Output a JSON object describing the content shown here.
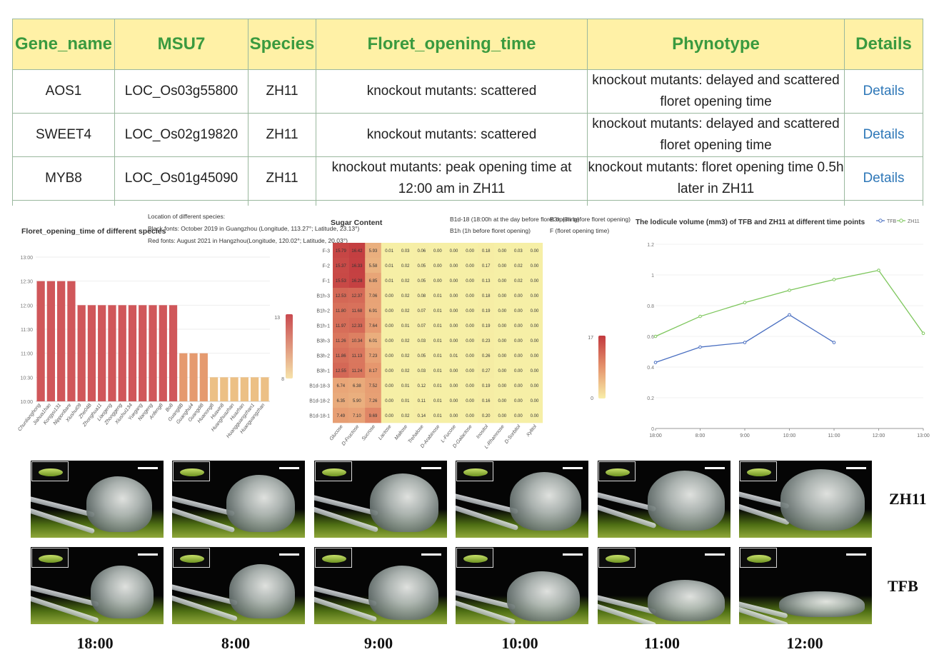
{
  "table": {
    "headers": [
      "Gene_name",
      "MSU7",
      "Species",
      "Floret_opening_time",
      "Phynotype",
      "Details"
    ],
    "rows": [
      {
        "gene": "AOS1",
        "msu": "LOC_Os03g55800",
        "species": "ZH11",
        "opening": "knockout mutants: scattered",
        "phenotype": "knockout mutants: delayed and scattered floret opening time",
        "details": "Details"
      },
      {
        "gene": "SWEET4",
        "msu": "LOC_Os02g19820",
        "species": "ZH11",
        "opening": "knockout mutants: scattered",
        "phenotype": "knockout mutants: delayed and scattered floret opening time",
        "details": "Details"
      },
      {
        "gene": "MYB8",
        "msu": "LOC_Os01g45090",
        "species": "ZH11",
        "opening": "knockout mutants: peak opening time at 12:00 am in ZH11",
        "phenotype": "knockout mutants: floret opening time 0.5h later in ZH11",
        "details": "Details"
      }
    ]
  },
  "colors": {
    "header_bg": "#fff1a6",
    "header_text": "#3a9a3f",
    "link": "#2f78b8",
    "bar_high": "#d0575a",
    "bar_mid": "#e59a6f",
    "bar_low": "#ecc085",
    "tfb_line": "#4a6fc1",
    "zh11_line": "#7dc65c"
  },
  "chart_data": [
    {
      "type": "bar",
      "title": "Floret_opening_time of different species",
      "notes": [
        "Location of different species:",
        "Black fonts: October 2019 in Guangzhou (Longitude, 113.27°; Latitude, 23.13°)",
        "Red fonts: August 2021 in Hangzhou(Longitude, 120.02°; Latitude, 20.03°)"
      ],
      "categories": [
        "Chunlianghong",
        "Jiahua1hao",
        "Kongyu131",
        "Nipponbare",
        "Xiushui09",
        "Zhe04B",
        "Zhonghua11",
        "Liaogeng",
        "Zhonggeng",
        "Xiushui134",
        "Yuegang",
        "Nangeng",
        "Anfeng8",
        "Bo8",
        "Guang8B",
        "Guanghui4",
        "Guangdi8",
        "Huanong8",
        "Huaxin8",
        "Huanghuazhan",
        "Huazhan",
        "Huangguangzhan1",
        "Huanguangzhan"
      ],
      "values": [
        12.5,
        12.5,
        12.5,
        12.5,
        12.0,
        12.0,
        12.0,
        12.0,
        12.0,
        12.0,
        12.0,
        12.0,
        12.0,
        12.0,
        11.0,
        11.0,
        11.0,
        10.5,
        10.5,
        10.5,
        10.5,
        10.5,
        10.5
      ],
      "ytick_labels": [
        "10:00",
        "10:30",
        "11:00",
        "11:30",
        "12:00",
        "12:30",
        "13:00"
      ],
      "ylim": [
        10,
        13
      ],
      "legend_labels": [
        "13",
        "8"
      ]
    },
    {
      "type": "heatmap",
      "title": "Sugar Content",
      "notes": [
        "B1d-18 (18:00h at the day before floret opening)",
        "B1h (1h before floret opening)",
        "B3h (3h before floret opening)",
        "F (floret opening time)"
      ],
      "rows": [
        "F-3",
        "F-2",
        "F-1",
        "B1h-3",
        "B1h-2",
        "B1h-1",
        "B3h-3",
        "B3h-2",
        "B3h-1",
        "B1d-18-3",
        "B1d-18-2",
        "B1d-18-1"
      ],
      "columns": [
        "Glucose",
        "D-Fructose",
        "Sucrose",
        "Lactose",
        "Maltose",
        "Trehalose",
        "D-Arabinose",
        "L-Fucose",
        "D-Galactose",
        "Inositol",
        "L-Rhamnose",
        "D-Sorbitol",
        "Xylitol"
      ],
      "values": [
        [
          "15.79",
          "16.42",
          "5.93",
          "0.01",
          "0.03",
          "0.06",
          "0.00",
          "0.00",
          "0.00",
          "0.18",
          "0.00",
          "0.03",
          "0.00"
        ],
        [
          "15.37",
          "16.33",
          "5.58",
          "0.01",
          "0.02",
          "0.05",
          "0.00",
          "0.00",
          "0.00",
          "0.17",
          "0.00",
          "0.02",
          "0.00"
        ],
        [
          "15.53",
          "16.28",
          "6.85",
          "0.01",
          "0.02",
          "0.05",
          "0.00",
          "0.00",
          "0.00",
          "0.13",
          "0.00",
          "0.02",
          "0.00"
        ],
        [
          "12.53",
          "12.37",
          "7.06",
          "0.00",
          "0.02",
          "0.08",
          "0.01",
          "0.00",
          "0.00",
          "0.18",
          "0.00",
          "0.00",
          "0.00"
        ],
        [
          "11.80",
          "11.68",
          "6.91",
          "0.00",
          "0.02",
          "0.07",
          "0.01",
          "0.00",
          "0.00",
          "0.19",
          "0.00",
          "0.00",
          "0.00"
        ],
        [
          "11.97",
          "12.33",
          "7.64",
          "0.00",
          "0.01",
          "0.07",
          "0.01",
          "0.00",
          "0.00",
          "0.19",
          "0.00",
          "0.00",
          "0.00"
        ],
        [
          "11.26",
          "10.34",
          "6.01",
          "0.00",
          "0.02",
          "0.03",
          "0.01",
          "0.00",
          "0.00",
          "0.23",
          "0.00",
          "0.00",
          "0.00"
        ],
        [
          "11.86",
          "11.13",
          "7.23",
          "0.00",
          "0.02",
          "0.05",
          "0.01",
          "0.01",
          "0.00",
          "0.26",
          "0.00",
          "0.00",
          "0.00"
        ],
        [
          "12.55",
          "11.24",
          "8.17",
          "0.00",
          "0.02",
          "0.03",
          "0.01",
          "0.00",
          "0.00",
          "0.27",
          "0.00",
          "0.00",
          "0.00"
        ],
        [
          "6.74",
          "6.38",
          "7.52",
          "0.00",
          "0.01",
          "0.12",
          "0.01",
          "0.00",
          "0.00",
          "0.19",
          "0.00",
          "0.00",
          "0.00"
        ],
        [
          "6.35",
          "5.90",
          "7.26",
          "0.00",
          "0.01",
          "0.11",
          "0.01",
          "0.00",
          "0.00",
          "0.16",
          "0.00",
          "0.00",
          "0.00"
        ],
        [
          "7.49",
          "7.10",
          "9.69",
          "0.00",
          "0.02",
          "0.14",
          "0.01",
          "0.00",
          "0.00",
          "0.20",
          "0.00",
          "0.00",
          "0.00"
        ]
      ],
      "legend_labels": [
        "17",
        "0"
      ],
      "value_range": [
        0,
        17
      ]
    },
    {
      "type": "line",
      "title": "The lodicule volume (mm3) of TFB and ZH11 at different time points",
      "x": [
        "18:00",
        "8:00",
        "9:00",
        "10:00",
        "11:00",
        "12:00",
        "13:00"
      ],
      "series": [
        {
          "name": "TFB",
          "values": [
            0.43,
            0.53,
            0.56,
            0.74,
            0.56,
            null,
            null
          ]
        },
        {
          "name": "ZH11",
          "values": [
            0.6,
            0.73,
            0.82,
            0.9,
            0.97,
            1.03,
            0.62
          ]
        }
      ],
      "ytick_labels": [
        "0",
        "0.2",
        "0.4",
        "0.6",
        "0.8",
        "1",
        "1.2"
      ],
      "ylim": [
        0,
        1.2
      ]
    }
  ],
  "figure": {
    "row_labels": [
      "ZH11",
      "TFB"
    ],
    "time_labels": [
      "18:00",
      "8:00",
      "9:00",
      "10:00",
      "11:00",
      "12:00"
    ]
  }
}
